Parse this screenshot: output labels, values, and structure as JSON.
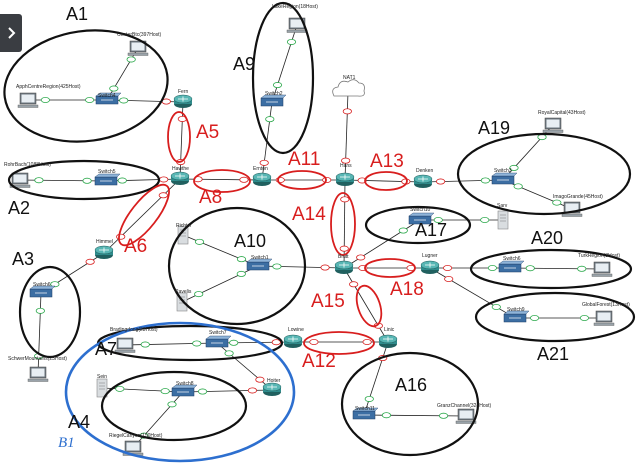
{
  "sidebar": {
    "toggle_icon": "chevron-right-icon"
  },
  "devices": {
    "lakeregion": "LakeRegion(18Host)",
    "nat1": "NAT1",
    "centerbtc": "CenterBtc(397Host)",
    "appcentre": "ApphCentreRegion(425Host)",
    "switch4": "Switch4",
    "fern": "Fern",
    "switch2": "Switch2",
    "royalcapital": "RoyalCapital(43Host)",
    "rohrbach": "RohrBach(1088Host)",
    "switch5": "Switch5",
    "hawthe": "Hawthe",
    "ernton": "Ernton",
    "hans": "Hans",
    "denken": "Denken",
    "switch3": "Switch3",
    "imagogrande": "ImagoGrande(45Host)",
    "sarv": "Sarv",
    "himmel": "Himmel",
    "richter": "Richter",
    "switch10": "Switch10",
    "switch1": "Switch1",
    "ravelis": "Ravelis",
    "brutt": "Brutt",
    "lugner": "Lugner",
    "turkregion": "TurkRegion(3Host)",
    "switch6": "Switch6",
    "globalforest": "GlobalForest(13Host)",
    "switch9": "Switch9",
    "bradingdong": "Bradingdong(23Host)",
    "switch7": "Switch7",
    "lowine": "Lowine",
    "linic": "Linic",
    "schwer": "SchwerMountains(23Host)",
    "sein": "Sein",
    "switch8": "Switch8",
    "hoiter": "Hoiter",
    "switch11": "Switch11",
    "granzchannel": "GranzChannel(324Host)",
    "riegelcanyon": "RiegelCanyon(150Host)"
  },
  "areas": {
    "a1": "A1",
    "a2": "A2",
    "a3": "A3",
    "a4": "A4",
    "a7": "A7",
    "a9": "A9",
    "a10": "A10",
    "a16": "A16",
    "a17": "A17",
    "a19": "A19",
    "a20": "A20",
    "a21": "A21"
  },
  "links": {
    "a5": "A5",
    "a6": "A6",
    "a8": "A8",
    "a11": "A11",
    "a12": "A12",
    "a13": "A13",
    "a14": "A14",
    "a15": "A15",
    "a18": "A18"
  },
  "annotation": {
    "b1": "B1"
  },
  "colors": {
    "area_outline": "#111111",
    "link_outline": "#d81e1e",
    "group_outline": "#2d6fcf",
    "cable": "#222222",
    "router": "#2f8c8c",
    "switch": "#3c6ea3"
  }
}
